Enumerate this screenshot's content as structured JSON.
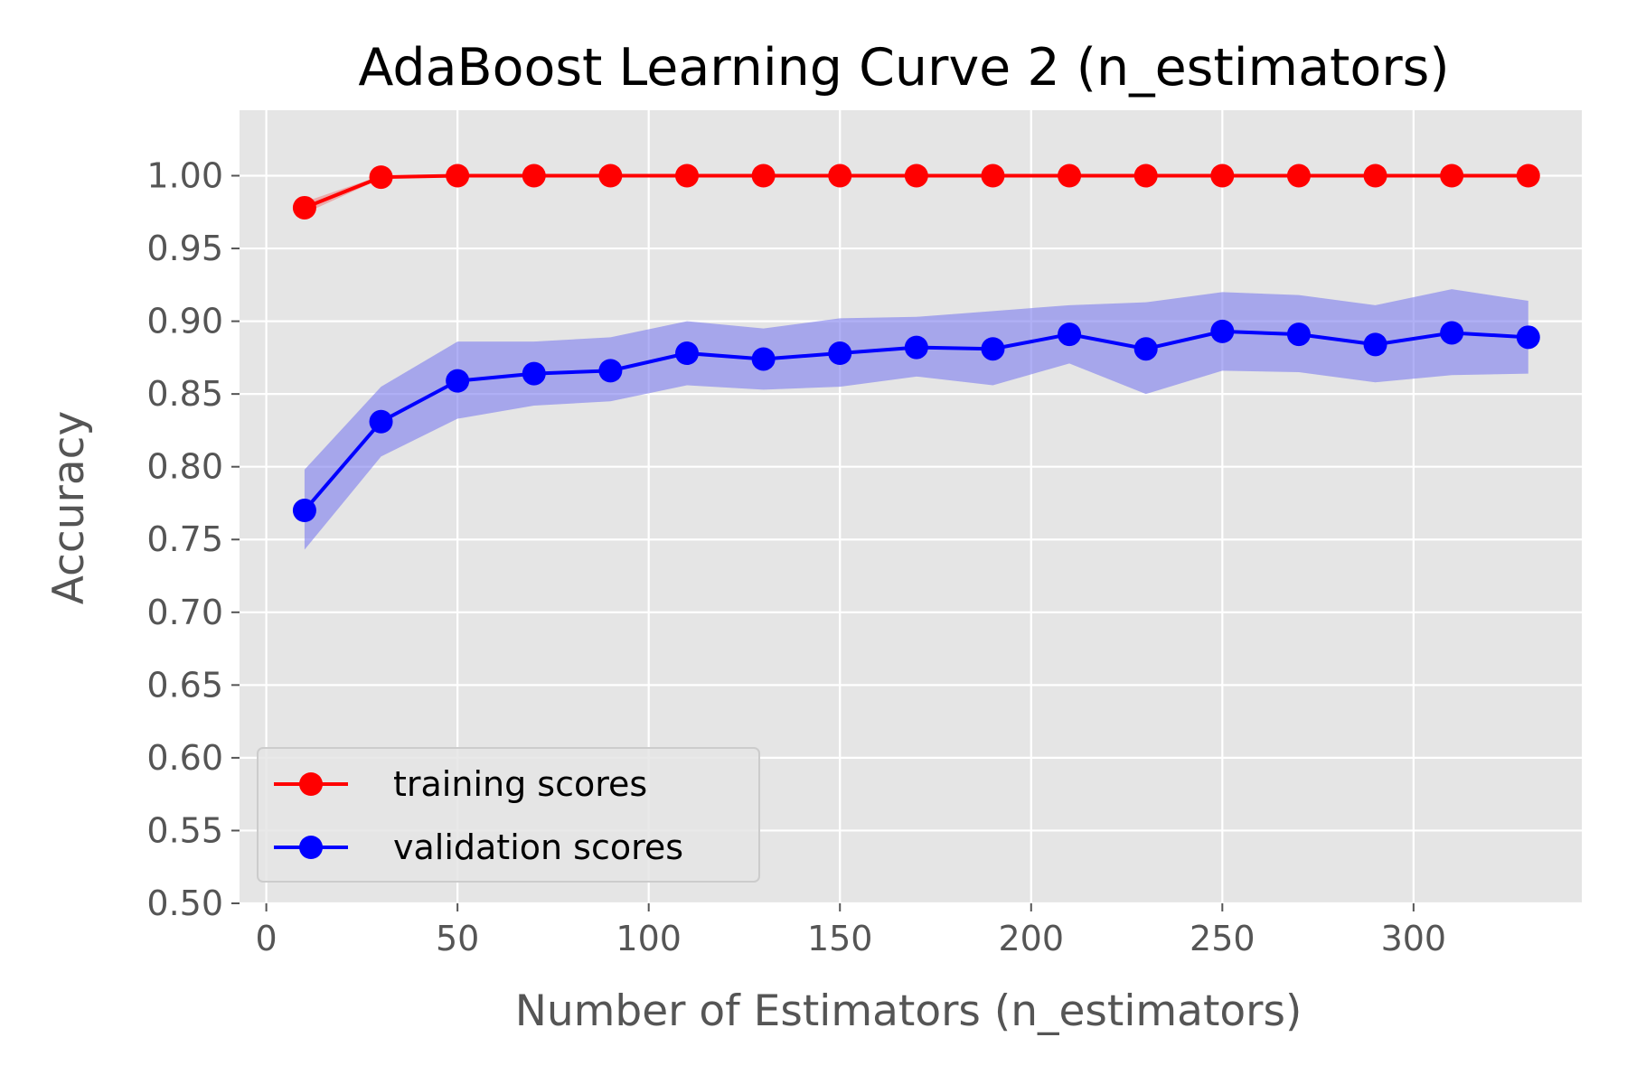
{
  "chart_data": {
    "type": "line",
    "title": "AdaBoost Learning Curve 2 (n_estimators)",
    "xlabel": "Number of Estimators (n_estimators)",
    "ylabel": "Accuracy",
    "xlim": [
      -7,
      344
    ],
    "ylim": [
      0.5,
      1.045
    ],
    "xticks": [
      "0",
      "50",
      "100",
      "150",
      "200",
      "250",
      "300"
    ],
    "yticks": [
      "0.50",
      "0.55",
      "0.60",
      "0.65",
      "0.70",
      "0.75",
      "0.80",
      "0.85",
      "0.90",
      "0.95",
      "1.00"
    ],
    "grid": true,
    "legend_position": "lower-left",
    "x": [
      10,
      30,
      50,
      70,
      90,
      110,
      130,
      150,
      170,
      190,
      210,
      230,
      250,
      270,
      290,
      310,
      330
    ],
    "series": [
      {
        "name": "training scores",
        "color": "#ff0000",
        "band_color": "#ff0000",
        "values": [
          0.978,
          0.999,
          1.0,
          1.0,
          1.0,
          1.0,
          1.0,
          1.0,
          1.0,
          1.0,
          1.0,
          1.0,
          1.0,
          1.0,
          1.0,
          1.0,
          1.0
        ],
        "band_lower": [
          0.974,
          0.998,
          1.0,
          1.0,
          1.0,
          1.0,
          1.0,
          1.0,
          1.0,
          1.0,
          1.0,
          1.0,
          1.0,
          1.0,
          1.0,
          1.0,
          1.0
        ],
        "band_upper": [
          0.982,
          1.0,
          1.0,
          1.0,
          1.0,
          1.0,
          1.0,
          1.0,
          1.0,
          1.0,
          1.0,
          1.0,
          1.0,
          1.0,
          1.0,
          1.0,
          1.0
        ]
      },
      {
        "name": "validation scores",
        "color": "#0000ff",
        "band_color": "#7b7bef",
        "values": [
          0.77,
          0.831,
          0.859,
          0.864,
          0.866,
          0.878,
          0.874,
          0.878,
          0.882,
          0.881,
          0.891,
          0.881,
          0.893,
          0.891,
          0.884,
          0.892,
          0.889
        ],
        "band_lower": [
          0.743,
          0.807,
          0.833,
          0.842,
          0.845,
          0.856,
          0.853,
          0.855,
          0.862,
          0.856,
          0.871,
          0.85,
          0.866,
          0.865,
          0.858,
          0.863,
          0.864
        ],
        "band_upper": [
          0.798,
          0.855,
          0.886,
          0.886,
          0.889,
          0.9,
          0.895,
          0.902,
          0.903,
          0.907,
          0.911,
          0.913,
          0.92,
          0.918,
          0.911,
          0.922,
          0.914
        ]
      }
    ]
  },
  "colors": {
    "plot_background": "#e5e5e5",
    "grid": "#ffffff",
    "legend_background": "#e5e5e5",
    "legend_border": "#cccccc",
    "tick_text": "#555555"
  }
}
